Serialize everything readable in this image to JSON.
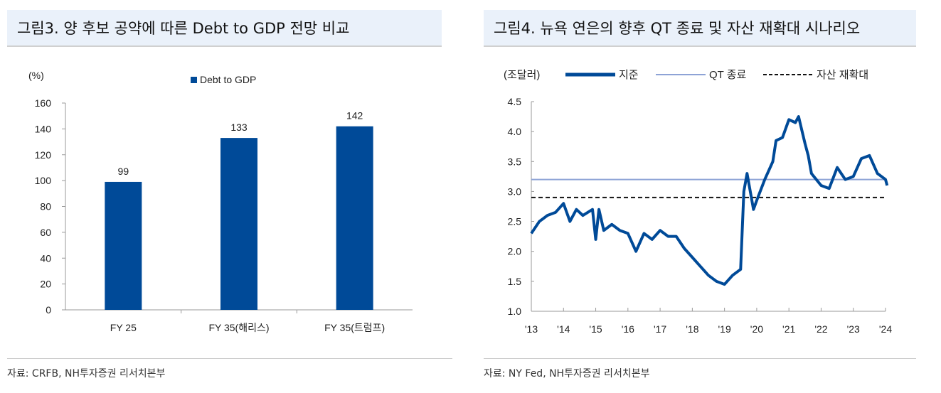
{
  "chart_data": [
    {
      "type": "bar",
      "title": "그림3. 양 후보 공약에 따른 Debt to GDP 전망 비교",
      "ylabel": "(%)",
      "source": "자료: CRFB, NH투자증권 리서치본부",
      "categories": [
        "FY 25",
        "FY 35(해리스)",
        "FY 35(트럼프)"
      ],
      "series": [
        {
          "name": "Debt to GDP",
          "values": [
            99,
            133,
            142
          ]
        }
      ],
      "ylim": [
        0,
        160
      ],
      "yticks": [
        0,
        20,
        40,
        60,
        80,
        100,
        120,
        140,
        160
      ],
      "legend": "top",
      "color": "#004a98",
      "grid": false
    },
    {
      "type": "line",
      "title": "그림4. 뉴욕 연은의 향후 QT 종료 및 자산 재확대 시나리오",
      "ylabel": "(조달러)",
      "source": "자료: NY Fed, NH투자증권 리서치본부",
      "ylim": [
        1.0,
        4.5
      ],
      "yticks": [
        "1.0",
        "1.5",
        "2.0",
        "2.5",
        "3.0",
        "3.5",
        "4.0",
        "4.5"
      ],
      "xticks": [
        "'13",
        "'14",
        "'15",
        "'16",
        "'17",
        "'18",
        "'19",
        "'20",
        "'21",
        "'22",
        "'23",
        "'24"
      ],
      "xlim": [
        2013,
        2024
      ],
      "legend": "top",
      "grid": false,
      "series": [
        {
          "name": "지준",
          "color": "#004a98",
          "x": [
            2013.0,
            2013.25,
            2013.5,
            2013.75,
            2014.0,
            2014.2,
            2014.4,
            2014.6,
            2014.9,
            2015.0,
            2015.1,
            2015.25,
            2015.5,
            2015.75,
            2016.0,
            2016.25,
            2016.5,
            2016.75,
            2017.0,
            2017.25,
            2017.5,
            2017.75,
            2018.0,
            2018.25,
            2018.5,
            2018.75,
            2019.0,
            2019.25,
            2019.5,
            2019.6,
            2019.7,
            2019.9,
            2020.0,
            2020.25,
            2020.5,
            2020.6,
            2020.8,
            2021.0,
            2021.2,
            2021.3,
            2021.5,
            2021.6,
            2021.7,
            2022.0,
            2022.25,
            2022.5,
            2022.75,
            2023.0,
            2023.25,
            2023.5,
            2023.75,
            2024.0,
            2024.05
          ],
          "y": [
            2.3,
            2.5,
            2.6,
            2.65,
            2.8,
            2.5,
            2.7,
            2.6,
            2.7,
            2.2,
            2.7,
            2.35,
            2.45,
            2.35,
            2.3,
            2.0,
            2.3,
            2.2,
            2.35,
            2.25,
            2.25,
            2.05,
            1.9,
            1.75,
            1.6,
            1.5,
            1.45,
            1.6,
            1.7,
            3.0,
            3.3,
            2.7,
            2.85,
            3.2,
            3.5,
            3.85,
            3.9,
            4.2,
            4.15,
            4.25,
            3.8,
            3.6,
            3.3,
            3.1,
            3.05,
            3.4,
            3.2,
            3.25,
            3.55,
            3.6,
            3.3,
            3.2,
            3.1
          ]
        },
        {
          "name": "QT 종료",
          "color": "#8ea3d6",
          "value": 3.2
        },
        {
          "name": "자산 재확대",
          "color": "#111111",
          "value": 2.9,
          "dash": true
        }
      ]
    }
  ]
}
